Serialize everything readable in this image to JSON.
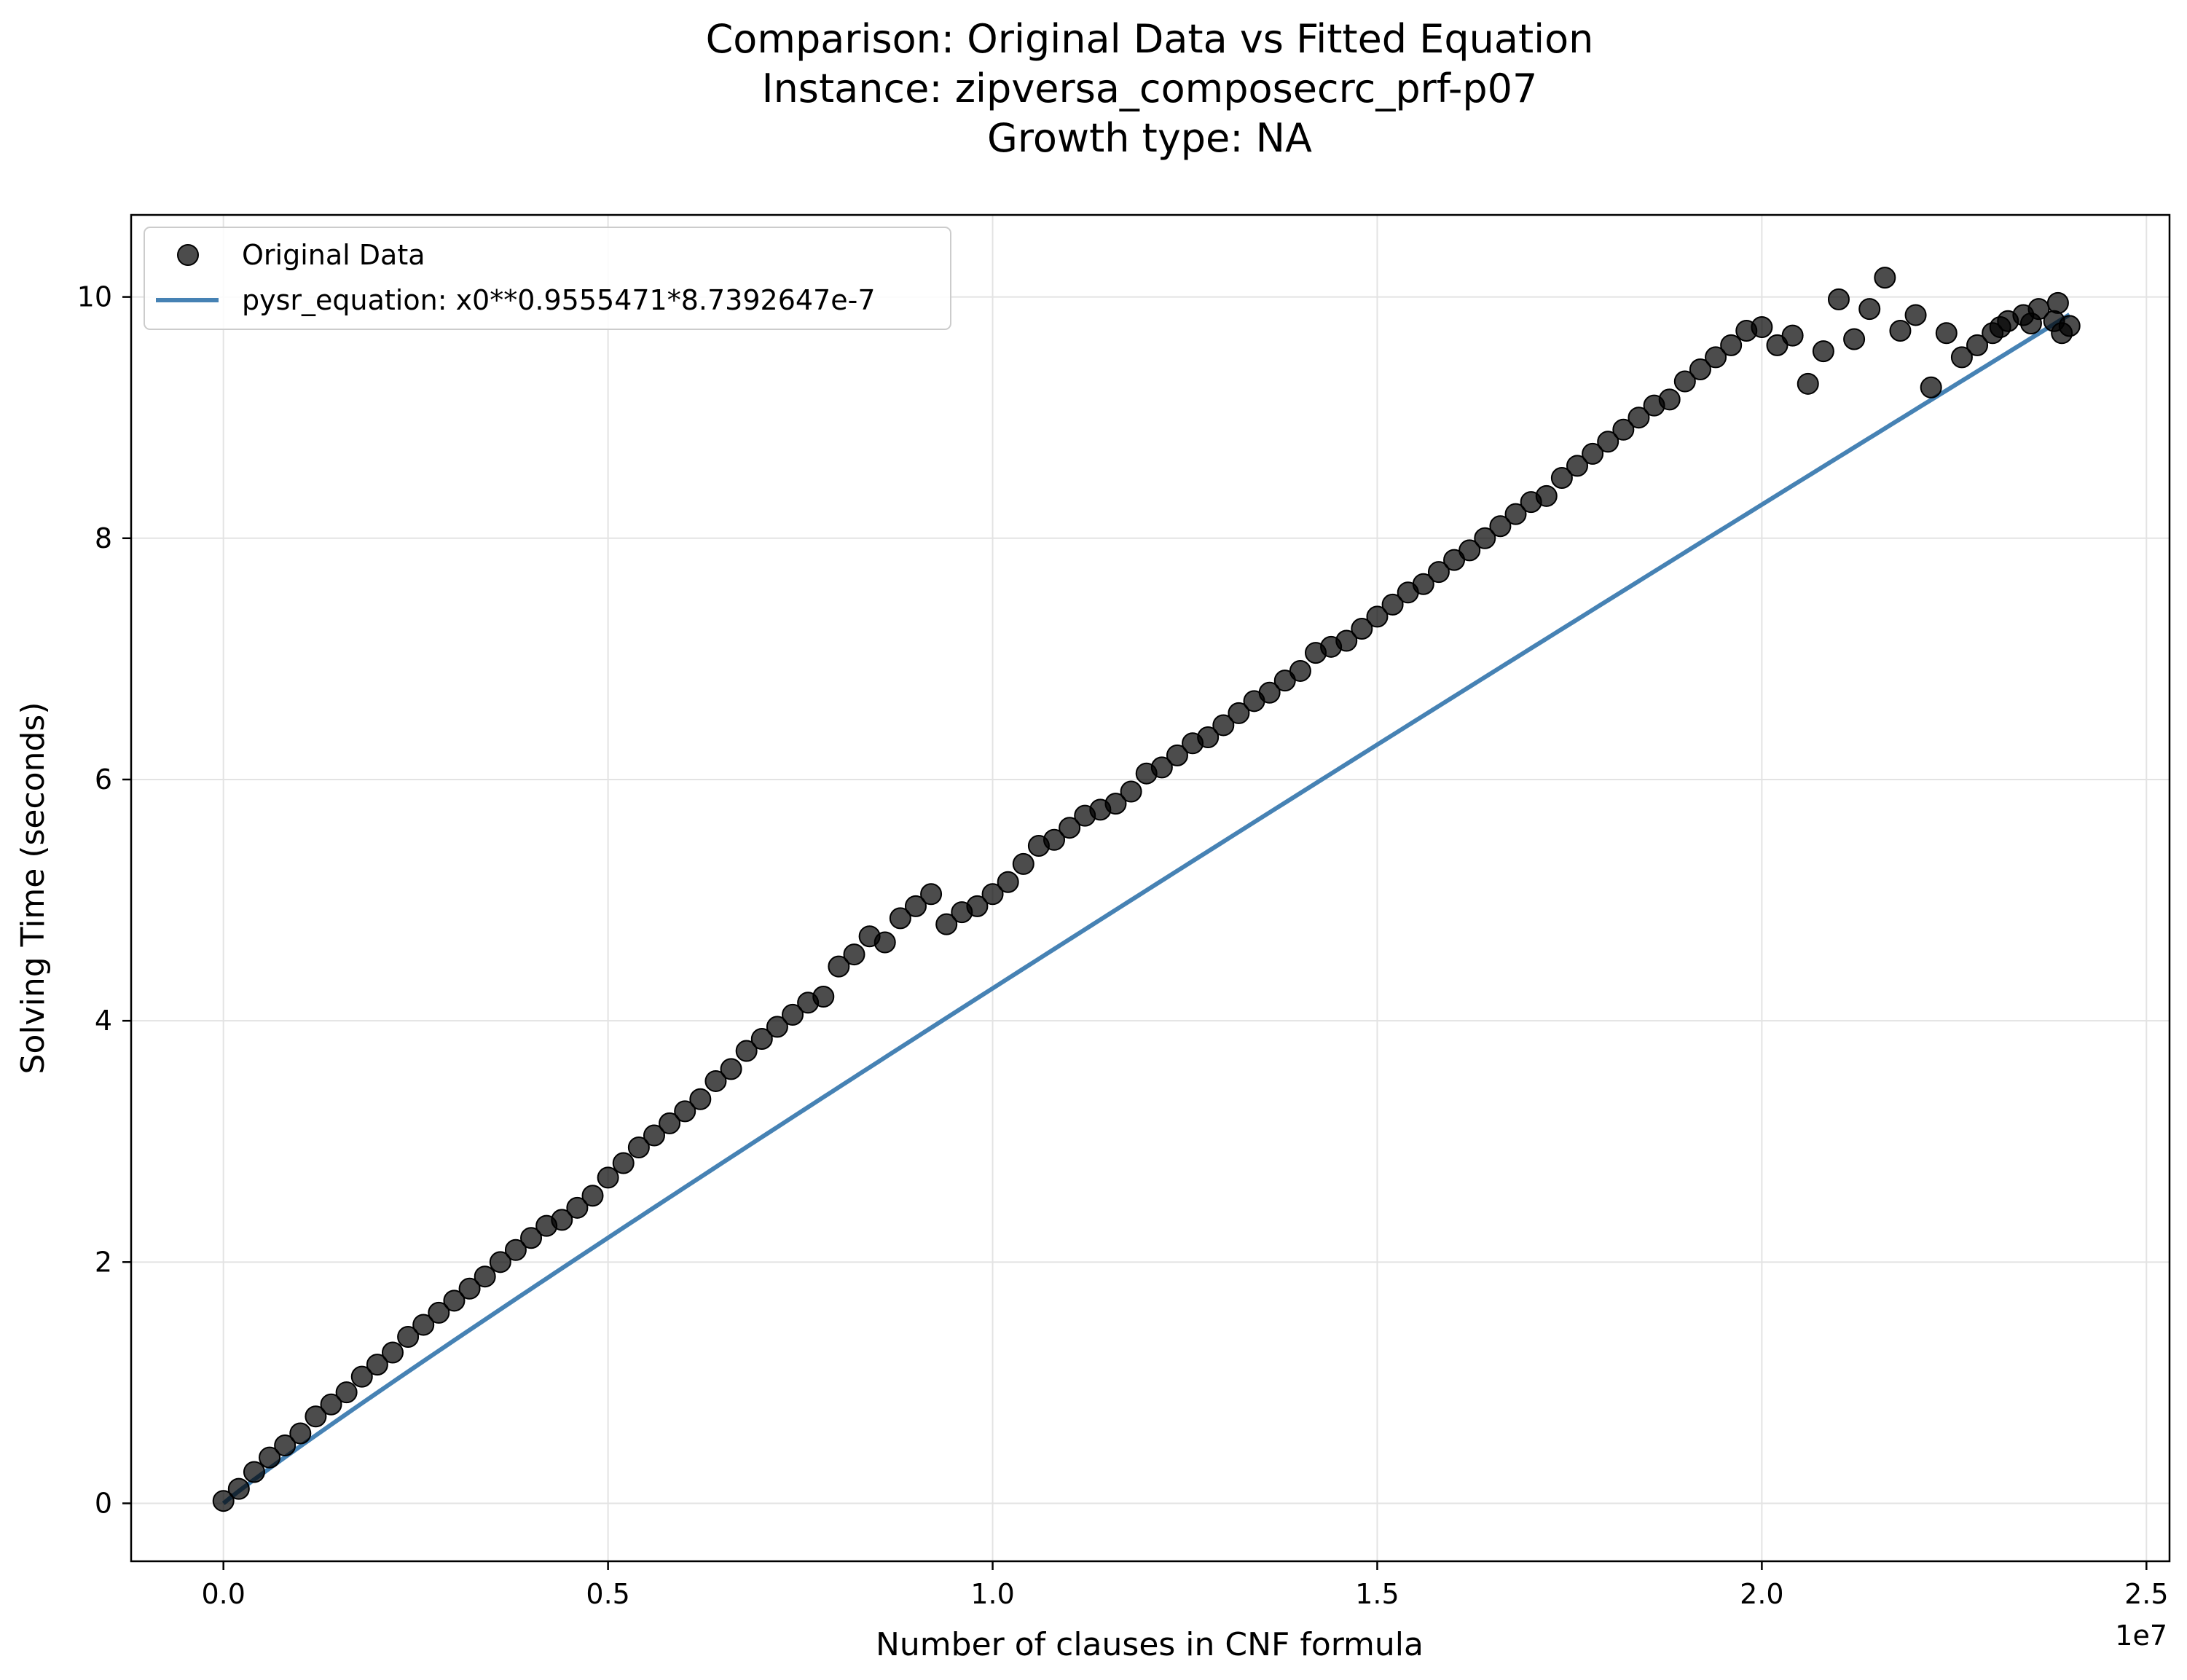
{
  "chart_data": {
    "type": "scatter",
    "title_lines": [
      "Comparison: Original Data vs Fitted Equation",
      "Instance: zipversa_composecrc_prf-p07",
      "Growth type: NA"
    ],
    "xlabel": "Number of clauses in CNF formula",
    "ylabel": "Solving Time (seconds)",
    "x_offset_label": "1e7",
    "xlim": [
      -0.12,
      2.53
    ],
    "ylim": [
      -0.48,
      10.68
    ],
    "x_ticks": [
      0.0,
      0.5,
      1.0,
      1.5,
      2.0,
      2.5
    ],
    "x_tick_labels": [
      "0.0",
      "0.5",
      "1.0",
      "1.5",
      "2.0",
      "2.5"
    ],
    "y_ticks": [
      0,
      2,
      4,
      6,
      8,
      10
    ],
    "y_tick_labels": [
      "0",
      "2",
      "4",
      "6",
      "8",
      "10"
    ],
    "grid": true,
    "legend_position": "top-left",
    "colors": {
      "points": "#000000",
      "line": "#4682b4"
    },
    "series": [
      {
        "name": "Original Data",
        "kind": "scatter",
        "x": [
          0.0,
          0.02,
          0.04,
          0.06,
          0.08,
          0.1,
          0.12,
          0.14,
          0.16,
          0.18,
          0.2,
          0.22,
          0.24,
          0.26,
          0.28,
          0.3,
          0.32,
          0.34,
          0.36,
          0.38,
          0.4,
          0.42,
          0.44,
          0.46,
          0.48,
          0.5,
          0.52,
          0.54,
          0.56,
          0.58,
          0.6,
          0.62,
          0.64,
          0.66,
          0.68,
          0.7,
          0.72,
          0.74,
          0.76,
          0.78,
          0.8,
          0.82,
          0.84,
          0.86,
          0.88,
          0.9,
          0.92,
          0.94,
          0.96,
          0.98,
          1.0,
          1.02,
          1.04,
          1.06,
          1.08,
          1.1,
          1.12,
          1.14,
          1.16,
          1.18,
          1.2,
          1.22,
          1.24,
          1.26,
          1.28,
          1.3,
          1.32,
          1.34,
          1.36,
          1.38,
          1.4,
          1.42,
          1.44,
          1.46,
          1.48,
          1.5,
          1.52,
          1.54,
          1.56,
          1.58,
          1.6,
          1.62,
          1.64,
          1.66,
          1.68,
          1.7,
          1.72,
          1.74,
          1.76,
          1.78,
          1.8,
          1.82,
          1.84,
          1.86,
          1.88,
          1.9,
          1.92,
          1.94,
          1.96,
          1.98,
          2.0,
          2.02,
          2.04,
          2.06,
          2.08,
          2.1,
          2.12,
          2.14,
          2.16,
          2.18,
          2.2,
          2.22,
          2.24,
          2.26,
          2.28,
          2.3,
          2.31,
          2.32,
          2.34,
          2.35,
          2.36,
          2.38,
          2.385,
          2.39,
          2.4
        ],
        "y": [
          0.02,
          0.12,
          0.26,
          0.38,
          0.48,
          0.58,
          0.72,
          0.82,
          0.92,
          1.05,
          1.15,
          1.25,
          1.38,
          1.48,
          1.58,
          1.68,
          1.78,
          1.88,
          2.0,
          2.1,
          2.2,
          2.3,
          2.35,
          2.45,
          2.55,
          2.7,
          2.82,
          2.95,
          3.05,
          3.15,
          3.25,
          3.35,
          3.5,
          3.6,
          3.75,
          3.85,
          3.95,
          4.05,
          4.15,
          4.2,
          4.45,
          4.55,
          4.7,
          4.65,
          4.85,
          4.95,
          5.05,
          4.8,
          4.9,
          4.95,
          5.05,
          5.15,
          5.3,
          5.45,
          5.5,
          5.6,
          5.7,
          5.75,
          5.8,
          5.9,
          6.05,
          6.1,
          6.2,
          6.3,
          6.35,
          6.45,
          6.55,
          6.65,
          6.72,
          6.82,
          6.9,
          7.05,
          7.1,
          7.15,
          7.25,
          7.35,
          7.45,
          7.55,
          7.62,
          7.72,
          7.82,
          7.9,
          8.0,
          8.1,
          8.2,
          8.3,
          8.35,
          8.5,
          8.6,
          8.7,
          8.8,
          8.9,
          9.0,
          9.1,
          9.15,
          9.3,
          9.4,
          9.5,
          9.6,
          9.72,
          9.75,
          9.6,
          9.68,
          9.28,
          9.55,
          9.98,
          9.65,
          9.9,
          10.16,
          9.72,
          9.85,
          9.25,
          9.7,
          9.5,
          9.6,
          9.7,
          9.75,
          9.8,
          9.85,
          9.78,
          9.9,
          9.8,
          9.95,
          9.7,
          9.76
        ],
        "note_points": "approximate"
      },
      {
        "name": "pysr_equation: x0**0.9555471*8.7392647e-7",
        "kind": "line",
        "coef": 8.7392647e-07,
        "exponent": 0.9555471,
        "x_scale": 10000000,
        "x_range": [
          0.0,
          2.4
        ]
      }
    ]
  }
}
